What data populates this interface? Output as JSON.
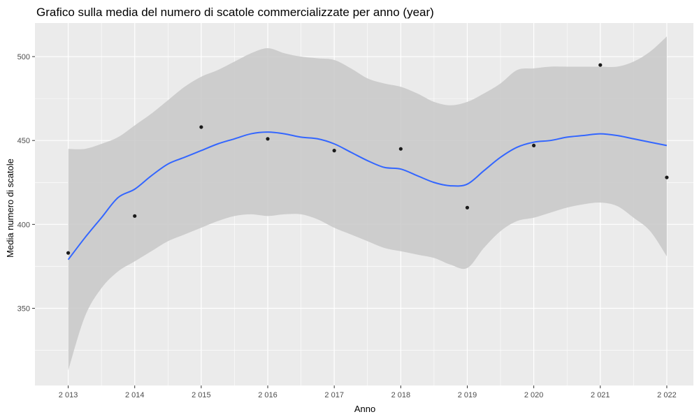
{
  "chart_data": {
    "type": "scatter",
    "title": "Grafico sulla media del numero di scatole commercializzate per anno (year)",
    "xlabel": "Anno",
    "ylabel": "Media numero di scatole",
    "x_tick_labels": [
      "2 013",
      "2 014",
      "2 015",
      "2 016",
      "2 017",
      "2 018",
      "2 019",
      "2 020",
      "2 021",
      "2 022"
    ],
    "y_tick_labels": [
      "350",
      "400",
      "450",
      "500"
    ],
    "y_ticks": [
      350,
      400,
      450,
      500
    ],
    "xlim": [
      2012.5,
      2022.4
    ],
    "ylim": [
      304,
      520
    ],
    "grid": true,
    "colors": {
      "panel": "#ebebeb",
      "grid": "#ffffff",
      "points": "#1a1a1a",
      "smooth": "#3366ff",
      "band": "#c8c8c8"
    },
    "points": {
      "x": [
        2013,
        2014,
        2015,
        2016,
        2017,
        2018,
        2019,
        2020,
        2021,
        2022
      ],
      "y": [
        383,
        405,
        458,
        451,
        444,
        445,
        410,
        447,
        495,
        428
      ]
    },
    "smooth": {
      "method": "loess",
      "x": [
        2013,
        2013.25,
        2013.5,
        2013.75,
        2014,
        2014.25,
        2014.5,
        2014.75,
        2015,
        2015.25,
        2015.5,
        2015.75,
        2016,
        2016.25,
        2016.5,
        2016.75,
        2017,
        2017.25,
        2017.5,
        2017.75,
        2018,
        2018.25,
        2018.5,
        2018.75,
        2019,
        2019.25,
        2019.5,
        2019.75,
        2020,
        2020.25,
        2020.5,
        2020.75,
        2021,
        2021.25,
        2021.5,
        2021.75,
        2022
      ],
      "y": [
        379,
        392,
        404,
        416,
        421,
        429,
        436,
        440,
        444,
        448,
        451,
        454,
        455,
        454,
        452,
        451,
        448,
        443,
        438,
        434,
        433,
        429,
        425,
        423,
        424,
        432,
        440,
        446,
        449,
        450,
        452,
        453,
        454,
        453,
        451,
        449,
        447
      ],
      "lower": [
        313,
        345,
        362,
        372,
        378,
        384,
        390,
        394,
        398,
        402,
        405,
        406,
        405,
        406,
        406,
        403,
        398,
        394,
        390,
        386,
        384,
        382,
        380,
        376,
        374,
        386,
        396,
        402,
        404,
        407,
        410,
        412,
        413,
        411,
        404,
        396,
        381
      ],
      "upper": [
        445,
        445,
        448,
        452,
        459,
        466,
        474,
        482,
        488,
        492,
        497,
        502,
        505,
        502,
        500,
        499,
        498,
        493,
        487,
        484,
        482,
        478,
        473,
        471,
        473,
        478,
        484,
        492,
        493,
        494,
        494,
        494,
        494,
        494,
        497,
        503,
        512
      ]
    }
  }
}
